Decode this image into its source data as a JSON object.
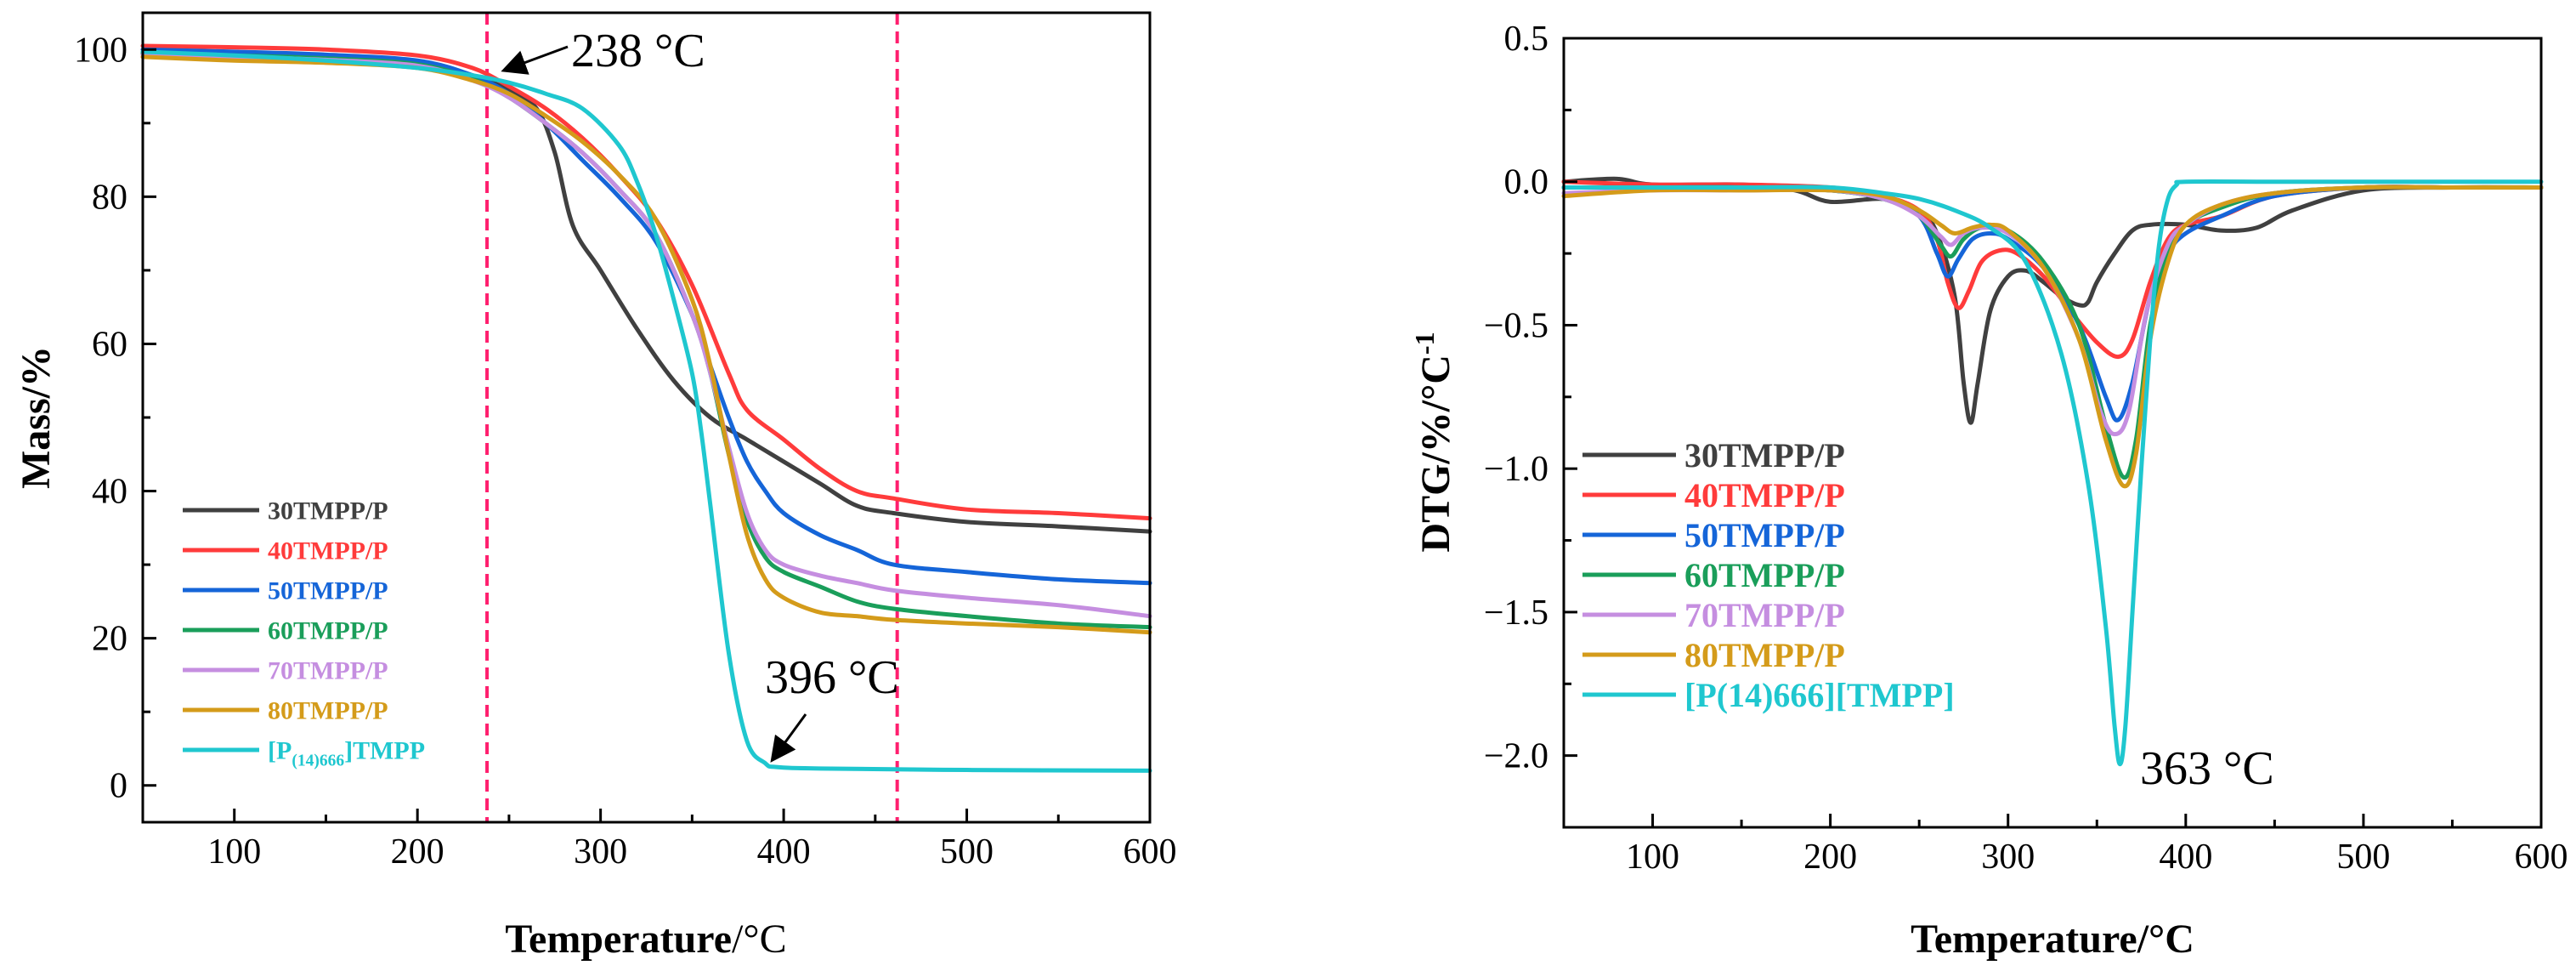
{
  "chart_data": [
    {
      "type": "line",
      "title": "",
      "xlabel_bold": "Temperature",
      "xlabel_unit": "/°C",
      "ylabel": "Mass/%",
      "xlim": [
        50,
        600
      ],
      "ylim": [
        -5,
        105
      ],
      "xticks": [
        100,
        200,
        300,
        400,
        500,
        600
      ],
      "yticks": [
        0,
        20,
        40,
        60,
        80,
        100
      ],
      "vlines": [
        238,
        462
      ],
      "legend_position": "lower-left",
      "series": [
        {
          "name": "30TMPP/P",
          "color": "#404040",
          "x": [
            50,
            100,
            150,
            200,
            230,
            250,
            265,
            275,
            285,
            300,
            320,
            340,
            360,
            380,
            400,
            420,
            440,
            460,
            500,
            550,
            600
          ],
          "y": [
            99.5,
            99.3,
            99.0,
            98.2,
            96.5,
            94.5,
            92,
            86,
            76,
            70,
            62,
            55,
            50,
            47,
            44,
            41,
            38,
            37,
            35.8,
            35.2,
            34.5
          ]
        },
        {
          "name": "40TMPP/P",
          "color": "#ff3b3b",
          "x": [
            50,
            100,
            150,
            200,
            230,
            250,
            270,
            290,
            310,
            330,
            350,
            370,
            380,
            400,
            420,
            440,
            460,
            500,
            550,
            600
          ],
          "y": [
            100.5,
            100.3,
            100,
            99.2,
            97.5,
            95,
            92,
            88,
            83,
            77,
            68,
            56,
            51,
            47,
            43,
            40,
            39,
            37.5,
            37,
            36.3
          ]
        },
        {
          "name": "50TMPP/P",
          "color": "#1565d8",
          "x": [
            50,
            100,
            150,
            200,
            230,
            250,
            270,
            290,
            310,
            330,
            350,
            360,
            370,
            380,
            390,
            400,
            420,
            440,
            460,
            500,
            550,
            600
          ],
          "y": [
            100,
            99.7,
            99.3,
            98.5,
            96.5,
            94,
            90,
            85,
            80,
            74,
            64,
            57,
            50,
            44,
            40,
            37,
            34,
            32,
            30,
            29,
            28,
            27.5
          ]
        },
        {
          "name": "60TMPP/P",
          "color": "#1a9e5a",
          "x": [
            50,
            100,
            150,
            200,
            230,
            250,
            270,
            290,
            310,
            330,
            350,
            360,
            370,
            380,
            390,
            400,
            420,
            440,
            460,
            500,
            550,
            600
          ],
          "y": [
            99.5,
            99.2,
            98.8,
            98,
            96,
            93.5,
            90,
            86,
            81,
            75,
            64,
            56,
            45,
            36,
            31,
            29,
            27,
            25,
            24,
            23,
            22,
            21.5
          ]
        },
        {
          "name": "70TMPP/P",
          "color": "#c58ee0",
          "x": [
            50,
            100,
            150,
            200,
            230,
            250,
            270,
            290,
            310,
            330,
            350,
            360,
            370,
            380,
            390,
            400,
            420,
            440,
            460,
            500,
            550,
            600
          ],
          "y": [
            99.3,
            99,
            98.6,
            97.8,
            95.8,
            93.5,
            90,
            86,
            81,
            75,
            64,
            56,
            46,
            37,
            32,
            30,
            28.5,
            27.5,
            26.5,
            25.5,
            24.5,
            23
          ]
        },
        {
          "name": "80TMPP/P",
          "color": "#d49b1a",
          "x": [
            50,
            100,
            150,
            200,
            230,
            250,
            270,
            290,
            310,
            330,
            350,
            360,
            370,
            380,
            390,
            400,
            420,
            440,
            460,
            500,
            550,
            600
          ],
          "y": [
            99,
            98.5,
            98.2,
            97.5,
            95.8,
            94,
            91,
            87.5,
            83,
            77,
            66,
            57,
            45,
            34,
            28,
            25.5,
            23.5,
            23,
            22.5,
            22,
            21.5,
            20.8
          ]
        },
        {
          "name": "[P(14)666]TMPP",
          "name_main": "[P",
          "name_sub": "(14)666",
          "name_tail": "]TMPP",
          "color": "#1fc7cf",
          "x": [
            50,
            100,
            150,
            200,
            230,
            250,
            270,
            290,
            310,
            320,
            330,
            340,
            350,
            355,
            360,
            370,
            380,
            390,
            396,
            420,
            500,
            600
          ],
          "y": [
            99.7,
            99.2,
            98.5,
            97.5,
            96.5,
            95.5,
            94,
            92,
            87,
            82,
            75,
            66,
            56,
            48,
            38,
            18,
            6,
            3,
            2.5,
            2.3,
            2.1,
            2.0
          ]
        }
      ],
      "annotations": [
        {
          "text": "238 °C",
          "x": 238,
          "y": 96
        },
        {
          "text": "396 °C",
          "x": 396,
          "y": 2.5
        }
      ]
    },
    {
      "type": "line",
      "title": "",
      "xlabel": "Temperature/°C",
      "ylabel": "DTG/%/°C",
      "ylabel_sup": "-1",
      "xlim": [
        50,
        600
      ],
      "ylim": [
        -2.25,
        0.5
      ],
      "xticks": [
        100,
        200,
        300,
        400,
        500,
        600
      ],
      "yticks": [
        0.5,
        0.0,
        -0.5,
        -1.0,
        -1.5,
        -2.0
      ],
      "ytick_labels": [
        "0.5",
        "0.0",
        "−0.5",
        "−1.0",
        "−1.5",
        "−2.0"
      ],
      "legend_position": "lower-left",
      "series": [
        {
          "name": "30TMPP/P",
          "color": "#404040",
          "x": [
            50,
            80,
            100,
            150,
            180,
            200,
            230,
            250,
            260,
            270,
            275,
            279,
            283,
            290,
            300,
            310,
            320,
            330,
            340,
            345,
            350,
            360,
            370,
            380,
            400,
            420,
            440,
            460,
            500,
            550,
            600
          ],
          "y": [
            0.0,
            0.01,
            -0.01,
            -0.01,
            -0.03,
            -0.07,
            -0.06,
            -0.1,
            -0.18,
            -0.4,
            -0.7,
            -0.84,
            -0.7,
            -0.45,
            -0.33,
            -0.31,
            -0.35,
            -0.4,
            -0.43,
            -0.42,
            -0.35,
            -0.25,
            -0.17,
            -0.15,
            -0.15,
            -0.17,
            -0.16,
            -0.1,
            -0.03,
            -0.02,
            -0.02
          ]
        },
        {
          "name": "40TMPP/P",
          "color": "#ff3b3b",
          "x": [
            50,
            100,
            150,
            200,
            230,
            250,
            260,
            266,
            272,
            278,
            285,
            295,
            305,
            320,
            335,
            350,
            362,
            370,
            380,
            390,
            400,
            420,
            450,
            500,
            550,
            600
          ],
          "y": [
            0.0,
            -0.01,
            -0.01,
            -0.02,
            -0.05,
            -0.1,
            -0.2,
            -0.35,
            -0.44,
            -0.38,
            -0.28,
            -0.24,
            -0.25,
            -0.33,
            -0.45,
            -0.56,
            -0.61,
            -0.55,
            -0.35,
            -0.2,
            -0.15,
            -0.12,
            -0.05,
            -0.02,
            -0.02,
            -0.02
          ]
        },
        {
          "name": "50TMPP/P",
          "color": "#1565d8",
          "x": [
            50,
            100,
            150,
            200,
            230,
            250,
            260,
            266,
            272,
            280,
            290,
            300,
            320,
            340,
            355,
            362,
            370,
            380,
            390,
            400,
            420,
            450,
            500,
            550,
            600
          ],
          "y": [
            -0.02,
            -0.02,
            -0.02,
            -0.03,
            -0.06,
            -0.12,
            -0.25,
            -0.33,
            -0.27,
            -0.2,
            -0.18,
            -0.2,
            -0.3,
            -0.5,
            -0.75,
            -0.83,
            -0.7,
            -0.4,
            -0.25,
            -0.18,
            -0.12,
            -0.05,
            -0.02,
            -0.02,
            -0.02
          ]
        },
        {
          "name": "60TMPP/P",
          "color": "#1a9e5a",
          "x": [
            50,
            100,
            150,
            200,
            230,
            250,
            262,
            268,
            275,
            285,
            300,
            320,
            340,
            355,
            365,
            372,
            380,
            390,
            400,
            420,
            450,
            500,
            550,
            600
          ],
          "y": [
            -0.02,
            -0.02,
            -0.02,
            -0.03,
            -0.06,
            -0.12,
            -0.22,
            -0.26,
            -0.2,
            -0.16,
            -0.17,
            -0.28,
            -0.5,
            -0.85,
            -1.03,
            -0.9,
            -0.5,
            -0.25,
            -0.15,
            -0.09,
            -0.04,
            -0.02,
            -0.02,
            -0.02
          ]
        },
        {
          "name": "70TMPP/P",
          "color": "#c58ee0",
          "x": [
            50,
            100,
            150,
            200,
            230,
            250,
            262,
            268,
            275,
            285,
            300,
            320,
            340,
            352,
            360,
            368,
            378,
            390,
            400,
            420,
            450,
            500,
            550,
            600
          ],
          "y": [
            -0.04,
            -0.03,
            -0.03,
            -0.03,
            -0.06,
            -0.12,
            -0.19,
            -0.22,
            -0.18,
            -0.16,
            -0.18,
            -0.3,
            -0.55,
            -0.8,
            -0.88,
            -0.8,
            -0.45,
            -0.22,
            -0.15,
            -0.08,
            -0.04,
            -0.02,
            -0.02,
            -0.02
          ]
        },
        {
          "name": "80TMPP/P",
          "color": "#d49b1a",
          "x": [
            50,
            100,
            150,
            200,
            230,
            250,
            262,
            270,
            280,
            290,
            300,
            320,
            340,
            355,
            365,
            372,
            380,
            390,
            400,
            420,
            450,
            500,
            550,
            600
          ],
          "y": [
            -0.05,
            -0.03,
            -0.03,
            -0.03,
            -0.05,
            -0.1,
            -0.15,
            -0.18,
            -0.16,
            -0.15,
            -0.17,
            -0.3,
            -0.55,
            -0.9,
            -1.06,
            -0.95,
            -0.55,
            -0.28,
            -0.15,
            -0.08,
            -0.04,
            -0.02,
            -0.02,
            -0.02
          ]
        },
        {
          "name": "[P(14)666][TMPP]",
          "color": "#1fc7cf",
          "x": [
            50,
            100,
            150,
            200,
            230,
            250,
            270,
            290,
            310,
            330,
            345,
            355,
            360,
            363,
            366,
            370,
            375,
            380,
            385,
            390,
            395,
            400,
            450,
            500,
            550,
            600
          ],
          "y": [
            -0.02,
            -0.02,
            -0.02,
            -0.02,
            -0.04,
            -0.06,
            -0.1,
            -0.16,
            -0.28,
            -0.6,
            -1.05,
            -1.55,
            -1.9,
            -2.03,
            -1.9,
            -1.5,
            -1.0,
            -0.55,
            -0.22,
            -0.06,
            -0.01,
            0.0,
            0.0,
            0.0,
            0.0,
            0.0
          ]
        }
      ],
      "annotations": [
        {
          "text": "363 °C",
          "x": 363,
          "y": -2.03
        }
      ]
    }
  ]
}
